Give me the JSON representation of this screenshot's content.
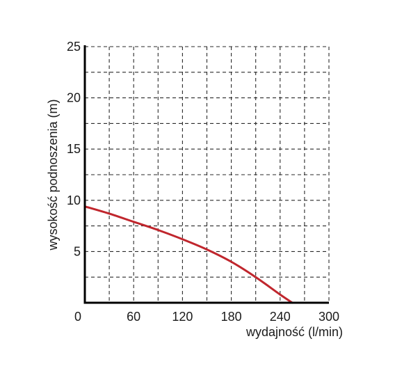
{
  "chart_data": {
    "type": "line",
    "xlabel": "wydajność (l/min)",
    "ylabel": "wysokość podnoszenia (m)",
    "xlim": [
      0,
      300
    ],
    "ylim": [
      0,
      25
    ],
    "x_ticks": [
      0,
      60,
      120,
      180,
      240,
      300
    ],
    "x_tick_labels": [
      "0",
      "60",
      "120",
      "180",
      "240",
      "300"
    ],
    "y_ticks": [
      5,
      10,
      15,
      20,
      25
    ],
    "y_tick_labels": [
      "5",
      "10",
      "15",
      "20",
      "25"
    ],
    "grid": true,
    "grid_style": "dashed",
    "x_grid_step": 30,
    "y_grid_step": 2.5,
    "series": [
      {
        "color": "#c0262d",
        "x": [
          0,
          30,
          60,
          90,
          120,
          150,
          180,
          210,
          240,
          255
        ],
        "y": [
          9.4,
          8.7,
          7.9,
          7.1,
          6.2,
          5.2,
          4.0,
          2.5,
          0.8,
          0.0
        ]
      }
    ]
  }
}
